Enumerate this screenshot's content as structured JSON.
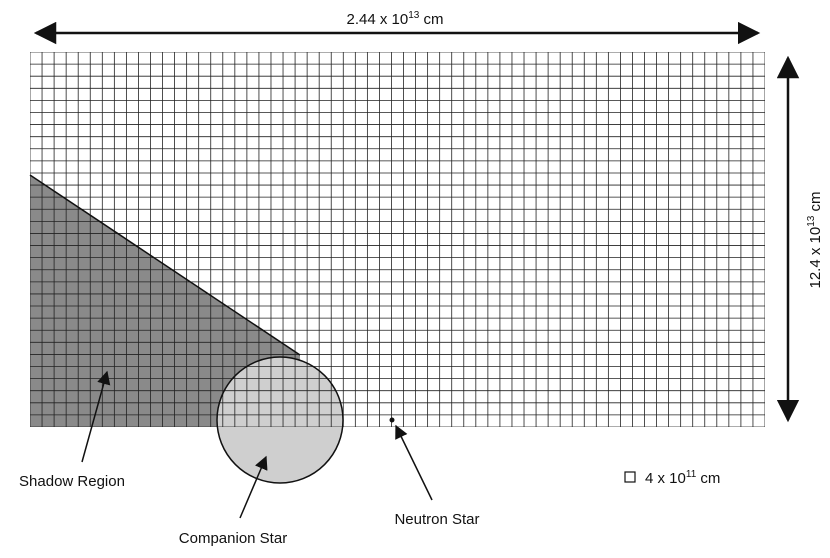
{
  "width_label": {
    "base": "2.44 x 10",
    "exponent": "13",
    "unit": " cm"
  },
  "height_label": {
    "base": "12.4 x 10",
    "exponent": "13",
    "unit": " cm"
  },
  "cell_label": {
    "base": "4 x 10",
    "exponent": "11",
    "unit": " cm"
  },
  "labels": {
    "shadow": "Shadow Region",
    "companion": "Companion Star",
    "neutron": "Neutron Star"
  }
}
